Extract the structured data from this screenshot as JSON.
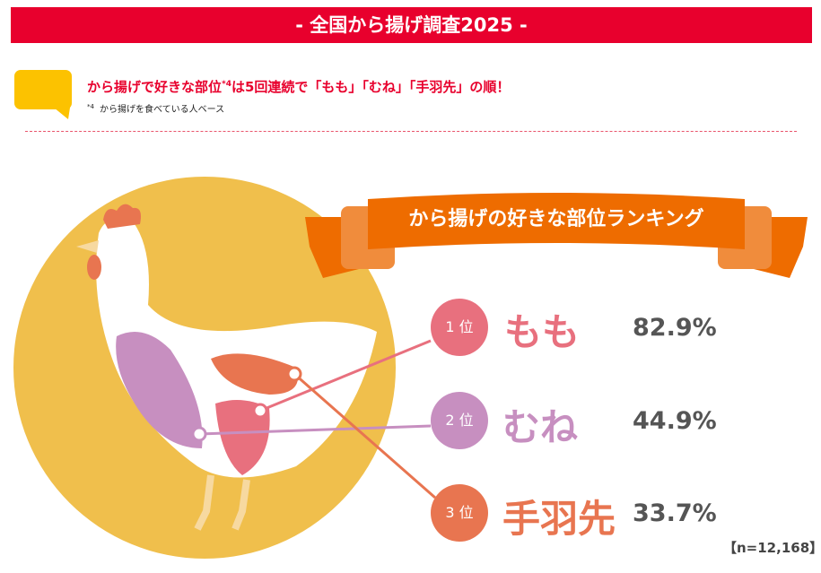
{
  "header": {
    "title": "- 全国から揚げ調査2025 -"
  },
  "headline": {
    "text_before": "から揚げで好きな部位",
    "mark": "*4",
    "text_after": "は5回連続で「もも」「むね」「手羽先」の順！"
  },
  "footnote": {
    "mark": "*4",
    "text": "から揚げを食べている人ベース"
  },
  "ribbon": {
    "title": "から揚げの好きな部位ランキング"
  },
  "ranking": [
    {
      "rank": "1 位",
      "part": "もも",
      "percent": "82.9%",
      "color": "#e8707e"
    },
    {
      "rank": "2 位",
      "part": "むね",
      "percent": "44.9%",
      "color": "#c78fc0"
    },
    {
      "rank": "3 位",
      "part": "手羽先",
      "percent": "33.7%",
      "color": "#e87550"
    }
  ],
  "sample": "【n=12,168】",
  "colors": {
    "header": "#e8002d",
    "bubble": "#fcc200",
    "circle": "#f0bf4c",
    "ribbon": "#ee6c00"
  }
}
